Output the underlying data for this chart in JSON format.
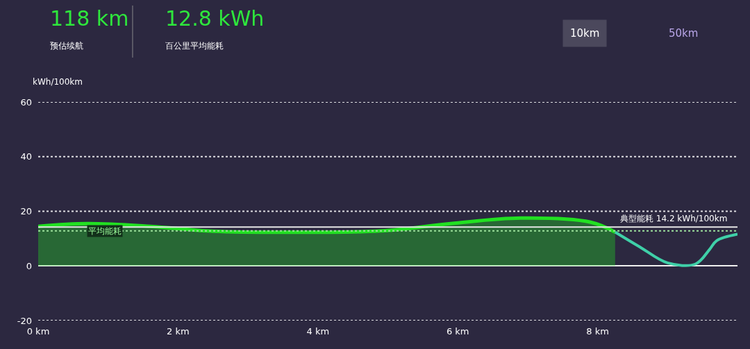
{
  "chart_data": {
    "type": "area",
    "ylabel": "kWh/100km",
    "annotations": [
      "118 km",
      "预估续航",
      "12.8 kWh",
      "百公里平均能耗",
      "10km",
      "50km"
    ],
    "xlim": [
      0,
      10
    ],
    "xticks": [
      {
        "value": 0,
        "label": "0 km"
      },
      {
        "value": 2,
        "label": "2 km"
      },
      {
        "value": 4,
        "label": "4 km"
      },
      {
        "value": 6,
        "label": "6 km"
      },
      {
        "value": 8,
        "label": "8 km"
      }
    ],
    "ylim": [
      -20,
      60
    ],
    "yticks": [
      -20,
      0,
      20,
      40,
      60
    ],
    "grid": "y",
    "series": [
      {
        "color": "#22e022",
        "x": [
          0,
          0.7,
          1.6,
          2.5,
          3.5,
          4.9,
          5.9,
          6.9,
          7.9,
          8.25
        ],
        "values": [
          14.5,
          15.5,
          14.5,
          12.7,
          12.3,
          12.8,
          15.5,
          17.5,
          16,
          12.4
        ]
      },
      {
        "type": "line",
        "color": "#3fd0a8",
        "x": [
          8.25,
          8.6,
          9.0,
          9.4,
          9.6,
          9.7,
          10.0
        ],
        "values": [
          12.4,
          7,
          1.1,
          0.7,
          6,
          9.2,
          11.6
        ]
      }
    ],
    "ref_lines": [
      {
        "axis": "y",
        "value": 12.8,
        "label": "平均能耗",
        "color": "#9be09b",
        "line_style": "dotted"
      },
      {
        "axis": "y",
        "value": 14.2,
        "label": "典型能耗 14.2 kWh/100km",
        "color": "#e6e6e6",
        "line_style": "solid"
      }
    ]
  }
}
